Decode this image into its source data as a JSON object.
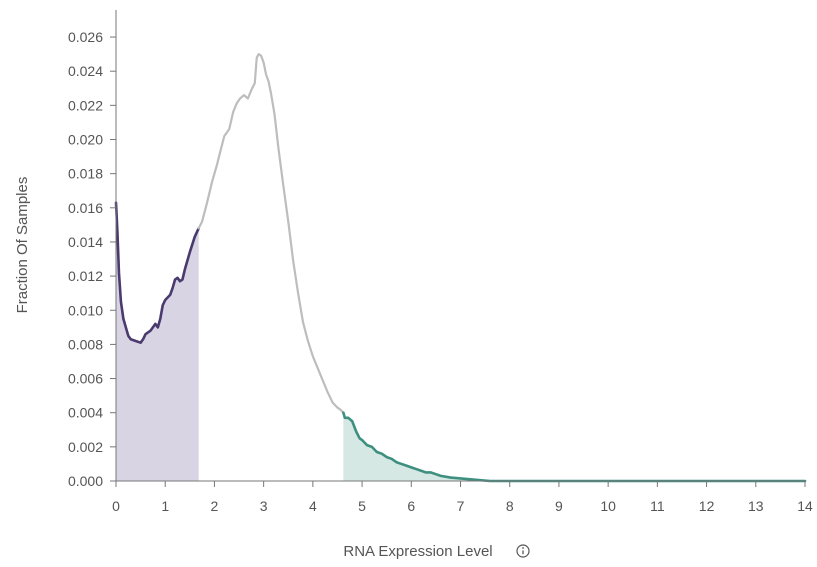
{
  "chart_data": {
    "type": "area",
    "xlabel": "RNA Expression Level",
    "ylabel": "Fraction Of Samples",
    "xlim": [
      0,
      14
    ],
    "ylim": [
      0,
      0.027
    ],
    "x_ticks": [
      0,
      1,
      2,
      3,
      4,
      5,
      6,
      7,
      8,
      9,
      10,
      11,
      12,
      13,
      14
    ],
    "y_ticks": [
      "0.000",
      "0.002",
      "0.004",
      "0.006",
      "0.008",
      "0.010",
      "0.012",
      "0.014",
      "0.016",
      "0.018",
      "0.020",
      "0.022",
      "0.024",
      "0.026"
    ],
    "info_icon": "info-circle-icon",
    "colors": {
      "low": "#4a3a6e",
      "low_fill": "#d9d4e4",
      "mid": "#bdbdbd",
      "high": "#3d8f80",
      "high_fill": "#d6e8e4",
      "axis": "#777777",
      "text": "#555555"
    },
    "series": [
      {
        "segment": "low",
        "points": [
          [
            0.0,
            0.0163
          ],
          [
            0.03,
            0.0145
          ],
          [
            0.06,
            0.0122
          ],
          [
            0.1,
            0.0105
          ],
          [
            0.15,
            0.0095
          ],
          [
            0.2,
            0.009
          ],
          [
            0.25,
            0.0085
          ],
          [
            0.3,
            0.0083
          ],
          [
            0.4,
            0.0082
          ],
          [
            0.5,
            0.0081
          ],
          [
            0.55,
            0.0083
          ],
          [
            0.6,
            0.0086
          ],
          [
            0.7,
            0.0088
          ],
          [
            0.8,
            0.0092
          ],
          [
            0.85,
            0.009
          ],
          [
            0.9,
            0.0095
          ],
          [
            0.95,
            0.0103
          ],
          [
            1.0,
            0.0106
          ],
          [
            1.1,
            0.0109
          ],
          [
            1.15,
            0.0113
          ],
          [
            1.2,
            0.0118
          ],
          [
            1.25,
            0.0119
          ],
          [
            1.3,
            0.0117
          ],
          [
            1.35,
            0.0118
          ],
          [
            1.4,
            0.0124
          ],
          [
            1.5,
            0.0134
          ],
          [
            1.6,
            0.0143
          ],
          [
            1.68,
            0.0148
          ]
        ]
      },
      {
        "segment": "mid",
        "points": [
          [
            1.68,
            0.0148
          ],
          [
            1.75,
            0.0152
          ],
          [
            1.85,
            0.0163
          ],
          [
            1.95,
            0.0175
          ],
          [
            2.05,
            0.0185
          ],
          [
            2.12,
            0.0193
          ],
          [
            2.2,
            0.0202
          ],
          [
            2.3,
            0.0206
          ],
          [
            2.38,
            0.0216
          ],
          [
            2.45,
            0.0221
          ],
          [
            2.52,
            0.0224
          ],
          [
            2.6,
            0.0226
          ],
          [
            2.68,
            0.0224
          ],
          [
            2.75,
            0.0229
          ],
          [
            2.82,
            0.0233
          ],
          [
            2.86,
            0.0248
          ],
          [
            2.9,
            0.025
          ],
          [
            2.95,
            0.0249
          ],
          [
            3.0,
            0.0245
          ],
          [
            3.05,
            0.0238
          ],
          [
            3.1,
            0.0234
          ],
          [
            3.15,
            0.0227
          ],
          [
            3.22,
            0.0215
          ],
          [
            3.3,
            0.0195
          ],
          [
            3.4,
            0.0173
          ],
          [
            3.5,
            0.0152
          ],
          [
            3.6,
            0.0129
          ],
          [
            3.7,
            0.011
          ],
          [
            3.8,
            0.0093
          ],
          [
            3.9,
            0.0082
          ],
          [
            4.0,
            0.0073
          ],
          [
            4.1,
            0.0066
          ],
          [
            4.2,
            0.0059
          ],
          [
            4.3,
            0.0052
          ],
          [
            4.4,
            0.0046
          ],
          [
            4.5,
            0.0043
          ],
          [
            4.55,
            0.0042
          ],
          [
            4.62,
            0.004
          ]
        ]
      },
      {
        "segment": "high",
        "points": [
          [
            4.62,
            0.004
          ],
          [
            4.65,
            0.0037
          ],
          [
            4.72,
            0.0037
          ],
          [
            4.8,
            0.0035
          ],
          [
            4.88,
            0.0029
          ],
          [
            4.95,
            0.0025
          ],
          [
            5.0,
            0.0024
          ],
          [
            5.1,
            0.0021
          ],
          [
            5.2,
            0.002
          ],
          [
            5.3,
            0.0017
          ],
          [
            5.4,
            0.0016
          ],
          [
            5.5,
            0.0014
          ],
          [
            5.6,
            0.0013
          ],
          [
            5.7,
            0.0011
          ],
          [
            5.8,
            0.001
          ],
          [
            5.9,
            0.0009
          ],
          [
            6.0,
            0.0008
          ],
          [
            6.1,
            0.0007
          ],
          [
            6.2,
            0.0006
          ],
          [
            6.3,
            0.0005
          ],
          [
            6.4,
            0.0005
          ],
          [
            6.5,
            0.0004
          ],
          [
            6.6,
            0.0003
          ],
          [
            6.8,
            0.0002
          ],
          [
            7.0,
            0.00015
          ],
          [
            7.2,
            0.0001
          ],
          [
            7.4,
            5e-05
          ],
          [
            7.6,
            0.0
          ],
          [
            8.0,
            0.0
          ],
          [
            9.0,
            0.0
          ],
          [
            10.0,
            0.0
          ],
          [
            11.0,
            0.0
          ],
          [
            12.0,
            0.0
          ],
          [
            13.0,
            0.0
          ],
          [
            14.0,
            0.0
          ]
        ]
      }
    ],
    "shaded_regions": [
      {
        "segment": "low",
        "x": [
          0,
          1.68
        ]
      },
      {
        "segment": "high",
        "x": [
          4.62,
          14
        ]
      }
    ]
  }
}
